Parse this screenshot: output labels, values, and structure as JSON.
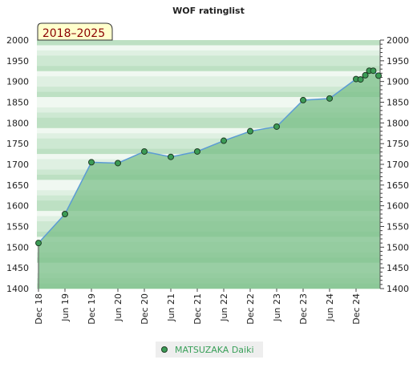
{
  "chart_data": {
    "type": "area",
    "title": "WOF ratinglist",
    "period_badge": "2018–2025",
    "xlabel": "",
    "ylabel": "",
    "ylim": [
      1400,
      2000
    ],
    "y_ticks": [
      1400,
      1450,
      1500,
      1550,
      1600,
      1650,
      1700,
      1750,
      1800,
      1850,
      1900,
      1950,
      2000
    ],
    "x_ticks": [
      "Dec 18",
      "Jun 19",
      "Dec 19",
      "Jun 20",
      "Dec 20",
      "Jun 21",
      "Dec 21",
      "Jun 22",
      "Dec 22",
      "Jun 23",
      "Dec 23",
      "Jun 24",
      "Dec 24"
    ],
    "series": [
      {
        "name": "MATSUZAKA Daiki",
        "points": [
          {
            "x": 0.0,
            "y": 1510
          },
          {
            "x": 1.0,
            "y": 1580
          },
          {
            "x": 2.0,
            "y": 1705
          },
          {
            "x": 3.0,
            "y": 1703
          },
          {
            "x": 4.0,
            "y": 1731
          },
          {
            "x": 5.0,
            "y": 1718
          },
          {
            "x": 6.0,
            "y": 1731
          },
          {
            "x": 7.0,
            "y": 1757
          },
          {
            "x": 8.0,
            "y": 1780
          },
          {
            "x": 9.0,
            "y": 1791
          },
          {
            "x": 10.0,
            "y": 1855
          },
          {
            "x": 11.0,
            "y": 1859
          },
          {
            "x": 12.0,
            "y": 1906
          },
          {
            "x": 12.17,
            "y": 1905
          },
          {
            "x": 12.35,
            "y": 1915
          },
          {
            "x": 12.5,
            "y": 1926
          },
          {
            "x": 12.65,
            "y": 1926
          },
          {
            "x": 12.85,
            "y": 1914
          }
        ]
      }
    ],
    "grid": true,
    "legend_position": "bottom-center",
    "colors": {
      "line": "#5b9bd5",
      "area": "#7cc08a",
      "marker_fill": "#3c9c56",
      "marker_stroke": "#1e3d24",
      "badge_bg": "#ffffcc",
      "badge_text": "#8b0000",
      "legend_text": "#3aa05a"
    }
  }
}
